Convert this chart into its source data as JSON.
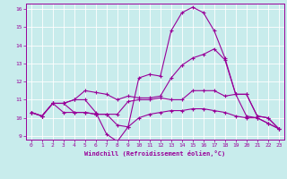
{
  "xlabel": "Windchill (Refroidissement éolien,°C)",
  "bg_color": "#c8ecec",
  "line_color": "#990099",
  "grid_color": "#ffffff",
  "xlim": [
    -0.5,
    23.5
  ],
  "ylim": [
    8.8,
    16.3
  ],
  "xticks": [
    0,
    1,
    2,
    3,
    4,
    5,
    6,
    7,
    8,
    9,
    10,
    11,
    12,
    13,
    14,
    15,
    16,
    17,
    18,
    19,
    20,
    21,
    22,
    23
  ],
  "yticks": [
    9,
    10,
    11,
    12,
    13,
    14,
    15,
    16
  ],
  "series": [
    [
      10.3,
      10.1,
      10.8,
      10.8,
      11.0,
      11.0,
      10.3,
      9.1,
      8.7,
      9.5,
      12.2,
      12.4,
      12.3,
      14.8,
      15.8,
      16.1,
      15.8,
      14.8,
      13.3,
      11.3,
      10.1,
      10.0,
      9.7,
      9.4
    ],
    [
      10.3,
      10.1,
      10.8,
      10.8,
      11.0,
      11.5,
      11.4,
      11.3,
      11.0,
      11.2,
      11.1,
      11.1,
      11.2,
      12.2,
      12.9,
      13.3,
      13.5,
      13.8,
      13.2,
      11.3,
      11.3,
      10.1,
      10.0,
      9.4
    ],
    [
      10.3,
      10.1,
      10.8,
      10.8,
      10.3,
      10.3,
      10.2,
      10.2,
      10.2,
      10.9,
      11.0,
      11.0,
      11.1,
      11.0,
      11.0,
      11.5,
      11.5,
      11.5,
      11.2,
      11.3,
      11.3,
      10.1,
      10.0,
      9.4
    ],
    [
      10.3,
      10.1,
      10.8,
      10.3,
      10.3,
      10.3,
      10.2,
      10.2,
      9.6,
      9.5,
      10.0,
      10.2,
      10.3,
      10.4,
      10.4,
      10.5,
      10.5,
      10.4,
      10.3,
      10.1,
      10.0,
      10.0,
      9.7,
      9.4
    ]
  ]
}
